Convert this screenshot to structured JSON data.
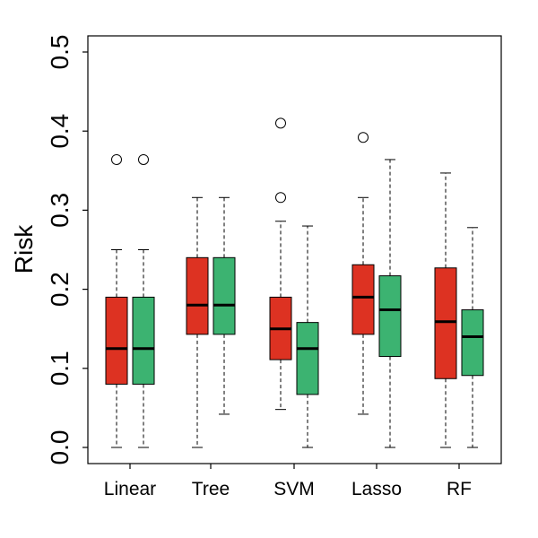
{
  "chart_data": {
    "type": "boxplot",
    "ylabel": "Risk",
    "xlabel": "",
    "ylim": [
      0.0,
      0.5
    ],
    "yticks": [
      0.0,
      0.1,
      0.2,
      0.3,
      0.4,
      0.5
    ],
    "ytick_labels": [
      "0.0",
      "0.1",
      "0.2",
      "0.3",
      "0.4",
      "0.5"
    ],
    "categories": [
      "Linear",
      "Tree",
      "SVM",
      "Lasso",
      "RF"
    ],
    "series": [
      {
        "name": "red",
        "color": "#dd3222",
        "boxes": [
          {
            "whisker_low": 0.0,
            "q1": 0.08,
            "median": 0.125,
            "q3": 0.19,
            "whisker_high": 0.25,
            "outliers": [
              0.364
            ]
          },
          {
            "whisker_low": 0.0,
            "q1": 0.143,
            "median": 0.18,
            "q3": 0.24,
            "whisker_high": 0.316,
            "outliers": []
          },
          {
            "whisker_low": 0.048,
            "q1": 0.111,
            "median": 0.15,
            "q3": 0.19,
            "whisker_high": 0.286,
            "outliers": [
              0.316,
              0.41
            ]
          },
          {
            "whisker_low": 0.042,
            "q1": 0.143,
            "median": 0.19,
            "q3": 0.231,
            "whisker_high": 0.316,
            "outliers": [
              0.392
            ]
          },
          {
            "whisker_low": 0.0,
            "q1": 0.087,
            "median": 0.159,
            "q3": 0.227,
            "whisker_high": 0.347,
            "outliers": []
          }
        ]
      },
      {
        "name": "green",
        "color": "#3cb371",
        "boxes": [
          {
            "whisker_low": 0.0,
            "q1": 0.08,
            "median": 0.125,
            "q3": 0.19,
            "whisker_high": 0.25,
            "outliers": [
              0.364
            ]
          },
          {
            "whisker_low": 0.042,
            "q1": 0.143,
            "median": 0.18,
            "q3": 0.24,
            "whisker_high": 0.316,
            "outliers": []
          },
          {
            "whisker_low": 0.0,
            "q1": 0.067,
            "median": 0.125,
            "q3": 0.158,
            "whisker_high": 0.28,
            "outliers": []
          },
          {
            "whisker_low": 0.0,
            "q1": 0.115,
            "median": 0.174,
            "q3": 0.217,
            "whisker_high": 0.364,
            "outliers": []
          },
          {
            "whisker_low": 0.0,
            "q1": 0.091,
            "median": 0.14,
            "q3": 0.174,
            "whisker_high": 0.278,
            "outliers": []
          }
        ]
      }
    ]
  }
}
